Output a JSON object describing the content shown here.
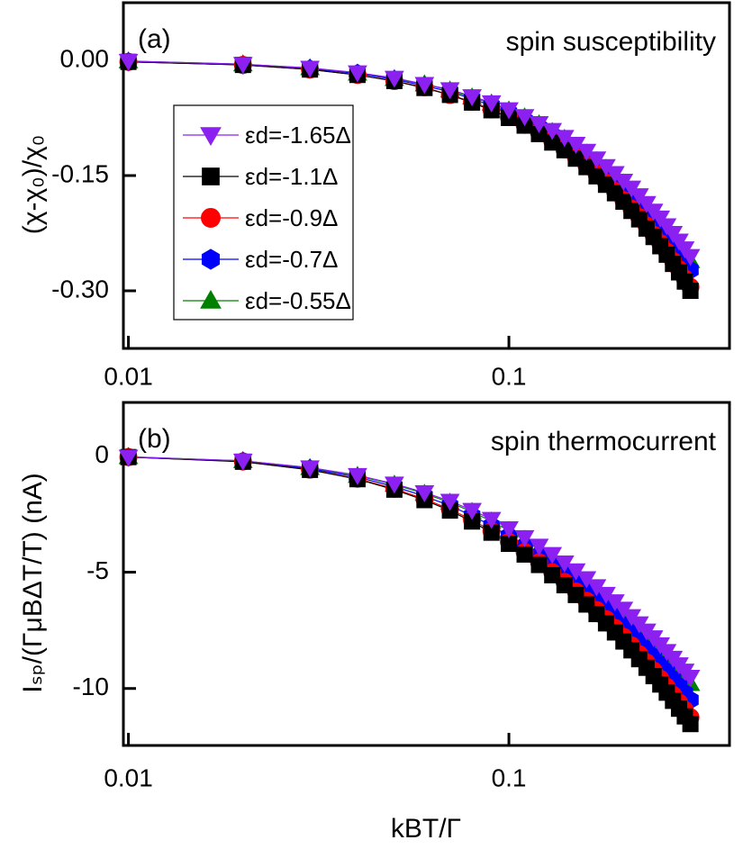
{
  "chart_data": [
    {
      "type": "line",
      "panel_label": "(a)",
      "annotation": "spin susceptibility",
      "y_label": "(χ-χ₀)/χ₀",
      "xscale": "log",
      "xlim": [
        0.0097,
        0.38
      ],
      "xticks": [
        0.01,
        0.1
      ],
      "ylim": [
        -0.375,
        0.075
      ],
      "yticks": [
        {
          "value": 0,
          "label": "0.00"
        },
        {
          "value": -0.15,
          "label": "-0.15"
        },
        {
          "value": -0.3,
          "label": "-0.30"
        }
      ],
      "grid": false,
      "legend": "center left",
      "x": [
        0.01,
        0.02,
        0.03,
        0.04,
        0.05,
        0.06,
        0.07,
        0.08,
        0.09,
        0.1,
        0.11,
        0.12,
        0.13,
        0.14,
        0.15,
        0.16,
        0.17,
        0.18,
        0.19,
        0.2,
        0.21,
        0.22,
        0.23,
        0.24,
        0.25,
        0.26,
        0.27,
        0.28,
        0.29,
        0.3
      ],
      "series": [
        {
          "name": "εd=-1.65Δ",
          "color": "#8b20f0",
          "marker": "v",
          "values": [
            -0.001,
            -0.005,
            -0.01,
            -0.016,
            -0.023,
            -0.031,
            -0.038,
            -0.047,
            -0.055,
            -0.064,
            -0.073,
            -0.082,
            -0.091,
            -0.1,
            -0.109,
            -0.118,
            -0.128,
            -0.138,
            -0.147,
            -0.157,
            -0.166,
            -0.176,
            -0.186,
            -0.196,
            -0.205,
            -0.215,
            -0.225,
            -0.235,
            -0.245,
            -0.255
          ]
        },
        {
          "name": "εd=-1.1Δ",
          "color": "#000000",
          "marker": "s",
          "values": [
            -0.002,
            -0.006,
            -0.012,
            -0.019,
            -0.027,
            -0.036,
            -0.045,
            -0.055,
            -0.065,
            -0.075,
            -0.085,
            -0.096,
            -0.107,
            -0.117,
            -0.128,
            -0.139,
            -0.151,
            -0.162,
            -0.173,
            -0.184,
            -0.196,
            -0.207,
            -0.219,
            -0.23,
            -0.242,
            -0.253,
            -0.265,
            -0.276,
            -0.288,
            -0.3
          ]
        },
        {
          "name": "εd=-0.9Δ",
          "color": "#ff0000",
          "marker": "o",
          "values": [
            -0.002,
            -0.006,
            -0.012,
            -0.019,
            -0.027,
            -0.035,
            -0.045,
            -0.054,
            -0.064,
            -0.074,
            -0.084,
            -0.094,
            -0.105,
            -0.116,
            -0.126,
            -0.137,
            -0.148,
            -0.159,
            -0.17,
            -0.182,
            -0.193,
            -0.204,
            -0.215,
            -0.227,
            -0.238,
            -0.249,
            -0.261,
            -0.272,
            -0.284,
            -0.295
          ]
        },
        {
          "name": "εd=-0.7Δ",
          "color": "#0000ff",
          "marker": "h",
          "values": [
            -0.002,
            -0.006,
            -0.011,
            -0.017,
            -0.025,
            -0.033,
            -0.041,
            -0.05,
            -0.059,
            -0.068,
            -0.078,
            -0.087,
            -0.097,
            -0.107,
            -0.117,
            -0.127,
            -0.137,
            -0.147,
            -0.157,
            -0.168,
            -0.178,
            -0.188,
            -0.199,
            -0.209,
            -0.22,
            -0.23,
            -0.241,
            -0.251,
            -0.262,
            -0.273
          ]
        },
        {
          "name": "εd=-0.55Δ",
          "color": "#008000",
          "marker": "^",
          "values": [
            -0.001,
            -0.005,
            -0.01,
            -0.017,
            -0.024,
            -0.031,
            -0.039,
            -0.048,
            -0.056,
            -0.065,
            -0.074,
            -0.083,
            -0.093,
            -0.102,
            -0.112,
            -0.121,
            -0.131,
            -0.141,
            -0.151,
            -0.16,
            -0.17,
            -0.18,
            -0.19,
            -0.2,
            -0.21,
            -0.22,
            -0.23,
            -0.24,
            -0.25,
            -0.261
          ]
        }
      ]
    },
    {
      "type": "line",
      "panel_label": "(b)",
      "annotation": "spin thermocurrent",
      "y_label": "Iₛₚ/(ΓμBΔT/T) (nA)",
      "x_label": "kBT/Γ",
      "xscale": "log",
      "xlim": [
        0.0097,
        0.38
      ],
      "xticks": [
        0.01,
        0.1
      ],
      "ylim": [
        -12.45,
        2.3
      ],
      "yticks": [
        0,
        -5,
        -10
      ],
      "grid": false,
      "x": [
        0.01,
        0.02,
        0.03,
        0.04,
        0.05,
        0.06,
        0.07,
        0.08,
        0.09,
        0.1,
        0.11,
        0.12,
        0.13,
        0.14,
        0.15,
        0.16,
        0.17,
        0.18,
        0.19,
        0.2,
        0.21,
        0.22,
        0.23,
        0.24,
        0.25,
        0.26,
        0.27,
        0.28,
        0.29,
        0.3
      ],
      "series": [
        {
          "color": "#8b20f0",
          "marker": "v",
          "values": [
            -0.04,
            -0.21,
            -0.5,
            -0.83,
            -1.2,
            -1.57,
            -1.94,
            -2.33,
            -2.72,
            -3.12,
            -3.5,
            -3.87,
            -4.23,
            -4.59,
            -4.93,
            -5.27,
            -5.61,
            -5.94,
            -6.26,
            -6.58,
            -6.9,
            -7.21,
            -7.52,
            -7.81,
            -8.11,
            -8.4,
            -8.69,
            -8.97,
            -9.24,
            -9.51
          ]
        },
        {
          "color": "#000000",
          "marker": "s",
          "values": [
            -0.05,
            -0.25,
            -0.6,
            -1.0,
            -1.45,
            -1.9,
            -2.35,
            -2.82,
            -3.3,
            -3.78,
            -4.24,
            -4.69,
            -5.13,
            -5.56,
            -5.98,
            -6.39,
            -6.8,
            -7.2,
            -7.59,
            -7.98,
            -8.36,
            -8.74,
            -9.11,
            -9.47,
            -9.83,
            -10.18,
            -10.53,
            -10.87,
            -11.2,
            -11.53
          ]
        },
        {
          "color": "#ff0000",
          "marker": "o",
          "values": [
            -0.05,
            -0.24,
            -0.59,
            -0.98,
            -1.41,
            -1.85,
            -2.29,
            -2.75,
            -3.22,
            -3.69,
            -4.13,
            -4.57,
            -5.0,
            -5.42,
            -5.83,
            -6.23,
            -6.63,
            -7.02,
            -7.4,
            -7.78,
            -8.15,
            -8.52,
            -8.88,
            -9.23,
            -9.58,
            -9.93,
            -10.27,
            -10.6,
            -10.92,
            -11.24
          ]
        },
        {
          "color": "#0000ff",
          "marker": "h",
          "values": [
            -0.05,
            -0.23,
            -0.55,
            -0.91,
            -1.32,
            -1.73,
            -2.14,
            -2.57,
            -3.0,
            -3.44,
            -3.86,
            -4.27,
            -4.67,
            -5.06,
            -5.44,
            -5.81,
            -6.19,
            -6.55,
            -6.91,
            -7.26,
            -7.61,
            -7.95,
            -8.29,
            -8.62,
            -8.95,
            -9.26,
            -9.58,
            -9.89,
            -10.19,
            -10.49
          ]
        },
        {
          "color": "#008000",
          "marker": "^",
          "values": [
            -0.04,
            -0.21,
            -0.51,
            -0.85,
            -1.23,
            -1.62,
            -2.0,
            -2.4,
            -2.81,
            -3.21,
            -3.6,
            -3.99,
            -4.36,
            -4.73,
            -5.08,
            -5.43,
            -5.78,
            -6.12,
            -6.45,
            -6.78,
            -7.11,
            -7.43,
            -7.74,
            -8.05,
            -8.36,
            -8.65,
            -8.95,
            -9.24,
            -9.52,
            -9.8
          ]
        }
      ]
    }
  ]
}
